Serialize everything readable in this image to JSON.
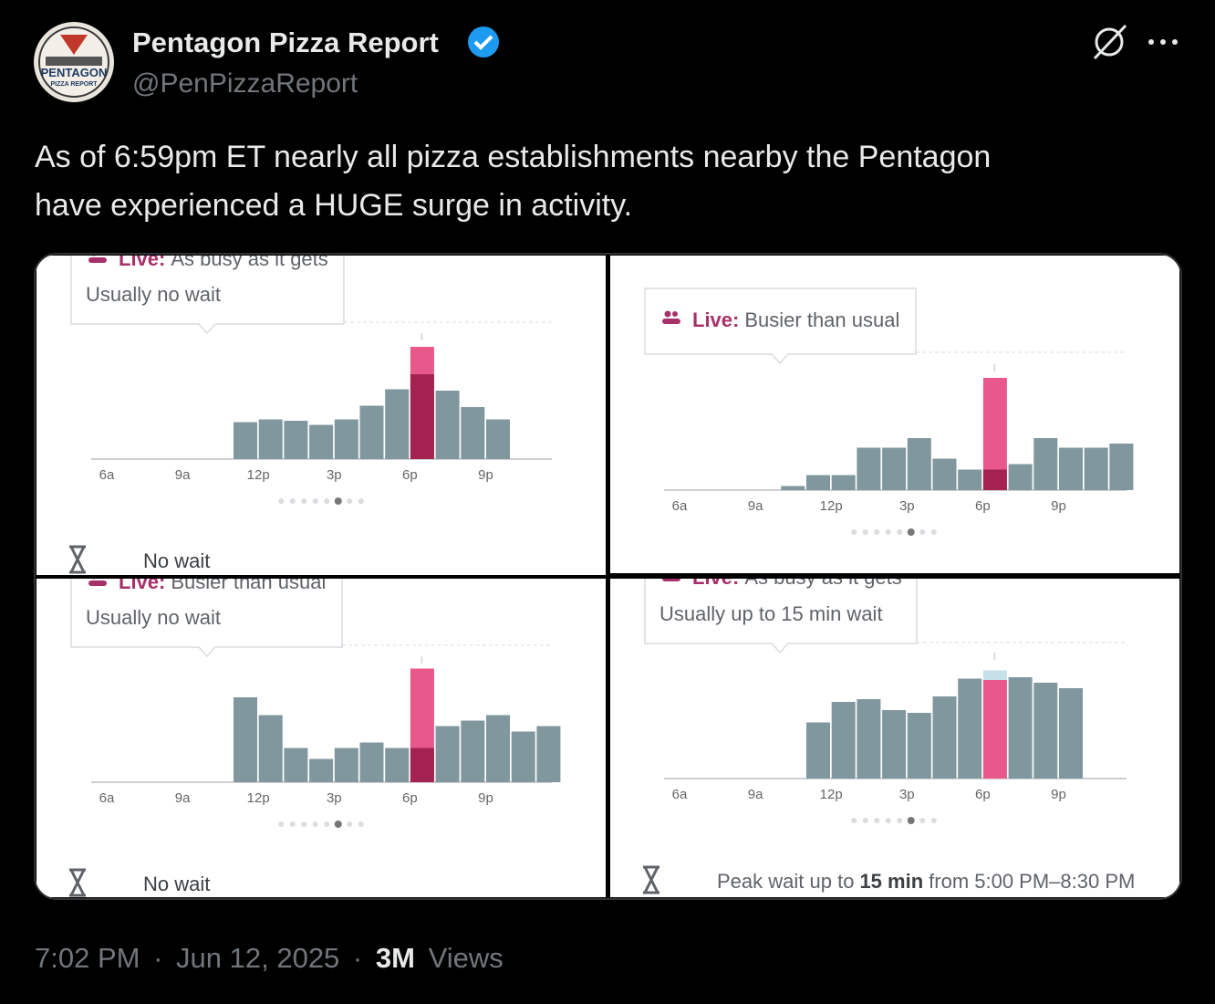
{
  "post": {
    "author": "Pentagon Pizza Report",
    "handle": "@PenPizzaReport",
    "avatar_text": [
      "PENTAGON",
      "PIZZA REPORT"
    ],
    "text_lines": [
      "As of 6:59pm ET nearly all pizza establishments nearby the Pentagon",
      "have experienced a HUGE surge in activity."
    ],
    "time": "7:02 PM",
    "separator": "·",
    "date": "Jun 12, 2025",
    "views_count": "3M",
    "views_label": "Views"
  },
  "chart_data": [
    {
      "type": "bar",
      "live_label": "Live:",
      "live_status": "As busy as it gets",
      "usual_wait": "Usually no wait",
      "wait_now": "No wait",
      "categories": [
        "6a",
        null,
        null,
        "9a",
        null,
        null,
        "12p",
        null,
        null,
        "3p",
        null,
        null,
        "6p",
        null,
        null,
        "9p",
        null,
        null
      ],
      "usual_values": [
        0,
        0,
        0,
        0,
        0,
        27,
        29,
        28,
        25,
        29,
        39,
        51,
        62,
        50,
        38,
        29,
        0,
        0
      ],
      "live_values": [
        null,
        null,
        null,
        null,
        null,
        null,
        null,
        null,
        null,
        null,
        null,
        null,
        82,
        null,
        null,
        null,
        null,
        null
      ],
      "ylim": [
        0,
        100
      ],
      "colors": {
        "usual": "#80979e",
        "live": "#e8588a",
        "overlap": "#a4224f",
        "usual_now": "#c5e0e8"
      }
    },
    {
      "type": "bar",
      "live_label": "Live:",
      "live_status": "Busier than usual",
      "categories": [
        "6a",
        null,
        null,
        "9a",
        null,
        null,
        "12p",
        null,
        null,
        "3p",
        null,
        null,
        "6p",
        null,
        null,
        "9p",
        null,
        null
      ],
      "usual_values": [
        0,
        0,
        0,
        0,
        3,
        11,
        11,
        31,
        31,
        38,
        23,
        15,
        15,
        19,
        38,
        31,
        31,
        34
      ],
      "live_values": [
        null,
        null,
        null,
        null,
        null,
        null,
        null,
        null,
        null,
        null,
        null,
        null,
        82,
        null,
        null,
        null,
        null,
        null
      ],
      "ylim": [
        0,
        100
      ],
      "colors": {
        "usual": "#80979e",
        "live": "#e8588a",
        "overlap": "#a4224f",
        "usual_now": "#c5e0e8"
      }
    },
    {
      "type": "bar",
      "live_label": "Live:",
      "live_status": "Busier than usual",
      "usual_wait": "Usually no wait",
      "wait_now": "No wait",
      "categories": [
        "6a",
        null,
        null,
        "9a",
        null,
        null,
        "12p",
        null,
        null,
        "3p",
        null,
        null,
        "6p",
        null,
        null,
        "9p",
        null,
        null
      ],
      "usual_values": [
        0,
        0,
        0,
        0,
        0,
        62,
        49,
        25,
        17,
        25,
        29,
        25,
        25,
        41,
        45,
        49,
        37,
        41
      ],
      "live_values": [
        null,
        null,
        null,
        null,
        null,
        null,
        null,
        null,
        null,
        null,
        null,
        null,
        83,
        null,
        null,
        null,
        null,
        null
      ],
      "ylim": [
        0,
        100
      ],
      "colors": {
        "usual": "#80979e",
        "live": "#e8588a",
        "overlap": "#a4224f",
        "usual_now": "#c5e0e8"
      }
    },
    {
      "type": "bar",
      "live_label": "Live:",
      "live_status": "As busy as it gets",
      "usual_wait": "Usually up to 15 min wait",
      "peak_wait": [
        "Peak wait up to",
        "15 min",
        "from 5:00 PM–8:30 PM"
      ],
      "categories": [
        "6a",
        null,
        null,
        "9a",
        null,
        null,
        "12p",
        null,
        null,
        "3p",
        null,
        null,
        "6p",
        null,
        null,
        "9p",
        null,
        null
      ],
      "usual_values": [
        0,
        0,
        0,
        0,
        0,
        41,
        56,
        58,
        50,
        48,
        60,
        73,
        79,
        74,
        70,
        66,
        0,
        0
      ],
      "live_values": [
        null,
        null,
        null,
        null,
        null,
        null,
        null,
        null,
        null,
        null,
        null,
        null,
        72,
        null,
        null,
        null,
        null,
        null
      ],
      "ylim": [
        0,
        100
      ],
      "colors": {
        "usual": "#80979e",
        "live": "#e8588a",
        "overlap": "#a4224f",
        "usual_now": "#c5e0e8"
      }
    }
  ]
}
